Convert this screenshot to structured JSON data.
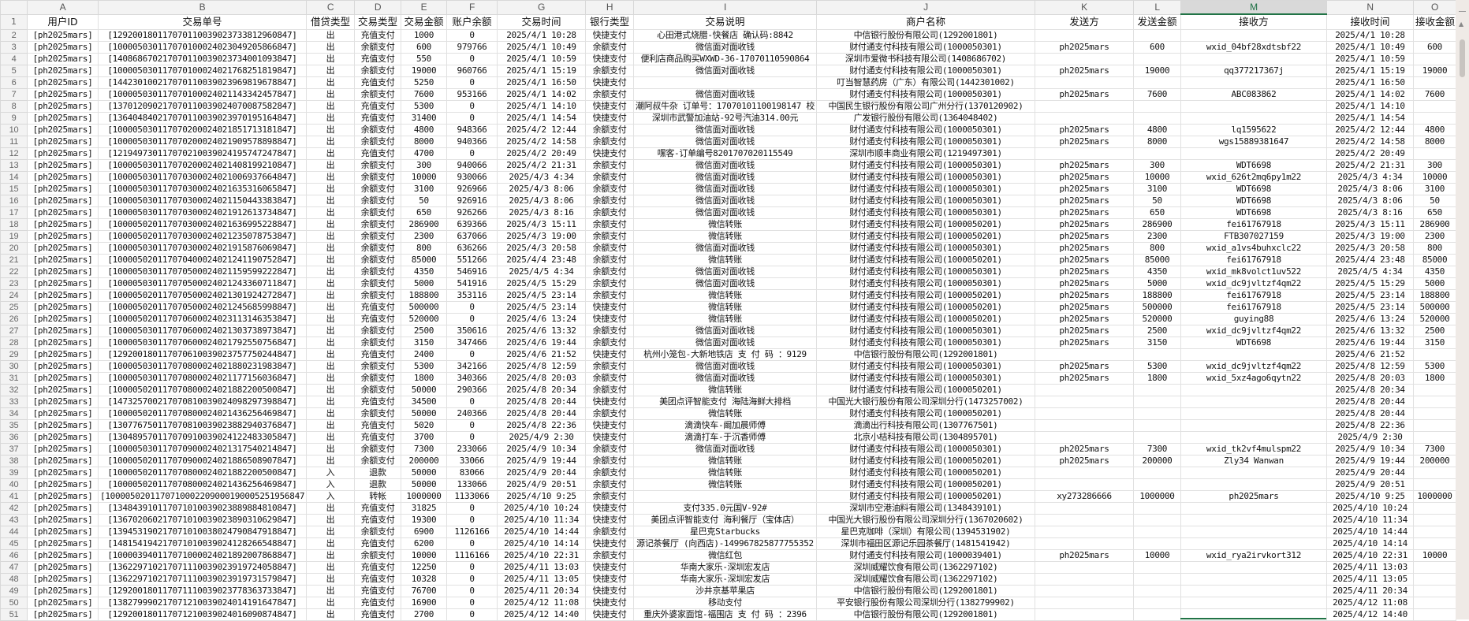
{
  "sheet": {
    "selected_column": "M",
    "columns": [
      "A",
      "B",
      "C",
      "D",
      "E",
      "F",
      "G",
      "H",
      "I",
      "J",
      "K",
      "L",
      "M",
      "N",
      "O"
    ],
    "headers": [
      "用户ID",
      "交易单号",
      "借贷类型",
      "交易类型",
      "交易金额",
      "账户余额",
      "交易时间",
      "银行类型",
      "交易说明",
      "商户名称",
      "发送方",
      "发送金额",
      "接收方",
      "接收时间",
      "接收金额"
    ],
    "row_numbers": [
      "1",
      "2",
      "3",
      "4",
      "5",
      "6",
      "7",
      "8",
      "9",
      "10",
      "11",
      "12",
      "13",
      "14",
      "15",
      "16",
      "17",
      "18",
      "19",
      "20",
      "21",
      "22",
      "23",
      "24",
      "25",
      "26",
      "27",
      "28",
      "29",
      "30",
      "31",
      "32",
      "33",
      "34",
      "35",
      "36",
      "37",
      "38",
      "39",
      "40",
      "41",
      "42",
      "43",
      "44",
      "45",
      "46",
      "47",
      "48",
      "49",
      "50",
      "51"
    ],
    "rows": [
      [
        "[ph2025mars]",
        "[129200180117070110039023733812960847]",
        "出",
        "充值支付",
        "1000",
        "0",
        "2025/4/1 10:28",
        "快捷支付",
        "心田港式烧腊-快餐店 确认码:8842",
        "中信银行股份有限公司(1292001801)",
        "",
        "",
        "",
        "2025/4/1 10:28",
        ""
      ],
      [
        "[ph2025mars]",
        "[100005030117070100024023049205866847]",
        "出",
        "余额支付",
        "600",
        "979766",
        "2025/4/1 10:49",
        "余额支付",
        "微信面对面收钱",
        "财付通支付科技有限公司(1000050301)",
        "ph2025mars",
        "600",
        "wxid_04bf28xdtsbf22",
        "2025/4/1 10:49",
        "600"
      ],
      [
        "[ph2025mars]",
        "[140868670217070110039023734001093847]",
        "出",
        "充值支付",
        "550",
        "0",
        "2025/4/1 10:59",
        "快捷支付",
        "便利店商品购买WXWD-36-17070110590864",
        "深圳市爱微书科技有限公司(1408686702)",
        "",
        "",
        "",
        "2025/4/1 10:59",
        ""
      ],
      [
        "[ph2025mars]",
        "[100005030117070100024021768251819847]",
        "出",
        "余额支付",
        "19000",
        "960766",
        "2025/4/1 15:19",
        "余额支付",
        "微信面对面收钱",
        "财付通支付科技有限公司(1000050301)",
        "ph2025mars",
        "19000",
        "qq377217367j",
        "2025/4/1 15:19",
        "19000"
      ],
      [
        "[ph2025mars]",
        "[144230100217070110039023969819678847]",
        "出",
        "充值支付",
        "5250",
        "0",
        "2025/4/1 16:50",
        "快捷支付",
        "",
        "叮当智慧药房（广东）有限公司(1442301002)",
        "",
        "",
        "",
        "2025/4/1 16:50",
        ""
      ],
      [
        "[ph2025mars]",
        "[100005030117070100024021143342457847]",
        "出",
        "余额支付",
        "7600",
        "953166",
        "2025/4/1 14:02",
        "余额支付",
        "微信面对面收钱",
        "财付通支付科技有限公司(1000050301)",
        "ph2025mars",
        "7600",
        "ABC083862",
        "2025/4/1 14:02",
        "7600"
      ],
      [
        "[ph2025mars]",
        "[137012090217070110039024070087582847]",
        "出",
        "充值支付",
        "5300",
        "0",
        "2025/4/1 14:10",
        "快捷支付",
        "潮阿叔牛杂 订单号：17070101100198147 校",
        "中国民生银行股份有限公司广州分行(1370120902)",
        "",
        "",
        "",
        "2025/4/1 14:10",
        ""
      ],
      [
        "[ph2025mars]",
        "[136404840217070110039023970195164847]",
        "出",
        "充值支付",
        "31400",
        "0",
        "2025/4/1 14:54",
        "快捷支付",
        "深圳市武警加油站-92号汽油314.00元",
        "广发银行股份有限公司(1364048402)",
        "",
        "",
        "",
        "2025/4/1 14:54",
        ""
      ],
      [
        "[ph2025mars]",
        "[100005030117070200024021851713181847]",
        "出",
        "余额支付",
        "4800",
        "948366",
        "2025/4/2 12:44",
        "余额支付",
        "微信面对面收钱",
        "财付通支付科技有限公司(1000050301)",
        "ph2025mars",
        "4800",
        "lq1595622",
        "2025/4/2 12:44",
        "4800"
      ],
      [
        "[ph2025mars]",
        "[100005030117070200024021909578898847]",
        "出",
        "余额支付",
        "8000",
        "940366",
        "2025/4/2 14:58",
        "余额支付",
        "微信面对面收钱",
        "财付通支付科技有限公司(1000050301)",
        "ph2025mars",
        "8000",
        "wgs15889381647",
        "2025/4/2 14:58",
        "8000"
      ],
      [
        "[ph2025mars]",
        "[121949730117070210039024195747247847]",
        "出",
        "充值支付",
        "4700",
        "0",
        "2025/4/2 20:49",
        "快捷支付",
        "嘿客-订单编号8201707020115549",
        "深圳市顺丰商业有限公司(1219497301)",
        "",
        "",
        "",
        "2025/4/2 20:49",
        ""
      ],
      [
        "[ph2025mars]",
        "[100005030117070200024021408199210847]",
        "出",
        "余额支付",
        "300",
        "940066",
        "2025/4/2 21:31",
        "余额支付",
        "微信面对面收钱",
        "财付通支付科技有限公司(1000050301)",
        "ph2025mars",
        "300",
        "WDT6698",
        "2025/4/2 21:31",
        "300"
      ],
      [
        "[ph2025mars]",
        "[100005030117070300024021006937664847]",
        "出",
        "余额支付",
        "10000",
        "930066",
        "2025/4/3 4:34",
        "余额支付",
        "微信面对面收钱",
        "财付通支付科技有限公司(1000050301)",
        "ph2025mars",
        "10000",
        "wxid_626t2mq6py1m22",
        "2025/4/3 4:34",
        "10000"
      ],
      [
        "[ph2025mars]",
        "[100005030117070300024021635316065847]",
        "出",
        "余额支付",
        "3100",
        "926966",
        "2025/4/3 8:06",
        "余额支付",
        "微信面对面收钱",
        "财付通支付科技有限公司(1000050301)",
        "ph2025mars",
        "3100",
        "WDT6698",
        "2025/4/3 8:06",
        "3100"
      ],
      [
        "[ph2025mars]",
        "[100005030117070300024021150443383847]",
        "出",
        "余额支付",
        "50",
        "926916",
        "2025/4/3 8:06",
        "余额支付",
        "微信面对面收钱",
        "财付通支付科技有限公司(1000050301)",
        "ph2025mars",
        "50",
        "WDT6698",
        "2025/4/3 8:06",
        "50"
      ],
      [
        "[ph2025mars]",
        "[100005030117070300024021912613734847]",
        "出",
        "余额支付",
        "650",
        "926266",
        "2025/4/3 8:16",
        "余额支付",
        "微信面对面收钱",
        "财付通支付科技有限公司(1000050301)",
        "ph2025mars",
        "650",
        "WDT6698",
        "2025/4/3 8:16",
        "650"
      ],
      [
        "[ph2025mars]",
        "[100005020117070300024021636995228847]",
        "出",
        "余额支付",
        "286900",
        "639366",
        "2025/4/3 15:11",
        "余额支付",
        "微信转账",
        "财付通支付科技有限公司(1000050201)",
        "ph2025mars",
        "286900",
        "fei61767918",
        "2025/4/3 15:11",
        "286900"
      ],
      [
        "[ph2025mars]",
        "[100005020117070300024021235078753847]",
        "出",
        "余额支付",
        "2300",
        "637066",
        "2025/4/3 19:00",
        "余额支付",
        "微信转账",
        "财付通支付科技有限公司(1000050201)",
        "ph2025mars",
        "2300",
        "FTB307027159",
        "2025/4/3 19:00",
        "2300"
      ],
      [
        "[ph2025mars]",
        "[100005030117070300024021915876069847]",
        "出",
        "余额支付",
        "800",
        "636266",
        "2025/4/3 20:58",
        "余额支付",
        "微信面对面收钱",
        "财付通支付科技有限公司(1000050301)",
        "ph2025mars",
        "800",
        "wxid_a1vs4buhxclc22",
        "2025/4/3 20:58",
        "800"
      ],
      [
        "[ph2025mars]",
        "[100005020117070400024021241190752847]",
        "出",
        "余额支付",
        "85000",
        "551266",
        "2025/4/4 23:48",
        "余额支付",
        "微信转账",
        "财付通支付科技有限公司(1000050201)",
        "ph2025mars",
        "85000",
        "fei61767918",
        "2025/4/4 23:48",
        "85000"
      ],
      [
        "[ph2025mars]",
        "[100005030117070500024021159599222847]",
        "出",
        "余额支付",
        "4350",
        "546916",
        "2025/4/5 4:34",
        "余额支付",
        "微信面对面收钱",
        "财付通支付科技有限公司(1000050301)",
        "ph2025mars",
        "4350",
        "wxid_mk8volct1uv522",
        "2025/4/5 4:34",
        "4350"
      ],
      [
        "[ph2025mars]",
        "[100005030117070500024021243360711847]",
        "出",
        "余额支付",
        "5000",
        "541916",
        "2025/4/5 15:29",
        "余额支付",
        "微信面对面收钱",
        "财付通支付科技有限公司(1000050301)",
        "ph2025mars",
        "5000",
        "wxid_dc9jvltzf4qm22",
        "2025/4/5 15:29",
        "5000"
      ],
      [
        "[ph2025mars]",
        "[100005020117070500024021301924272847]",
        "出",
        "余额支付",
        "188800",
        "353116",
        "2025/4/5 23:14",
        "余额支付",
        "微信转账",
        "财付通支付科技有限公司(1000050201)",
        "ph2025mars",
        "188800",
        "fei61767918",
        "2025/4/5 23:14",
        "188800"
      ],
      [
        "[ph2025mars]",
        "[100005020117070500024021245685998847]",
        "出",
        "充值支付",
        "500000",
        "0",
        "2025/4/5 23:14",
        "快捷支付",
        "微信转账",
        "财付通支付科技有限公司(1000050201)",
        "ph2025mars",
        "500000",
        "fei61767918",
        "2025/4/5 23:14",
        "500000"
      ],
      [
        "[ph2025mars]",
        "[100005020117070600024023113146353847]",
        "出",
        "充值支付",
        "520000",
        "0",
        "2025/4/6 13:24",
        "快捷支付",
        "微信转账",
        "财付通支付科技有限公司(1000050201)",
        "ph2025mars",
        "520000",
        "guying88",
        "2025/4/6 13:24",
        "520000"
      ],
      [
        "[ph2025mars]",
        "[100005030117070600024021303738973847]",
        "出",
        "余额支付",
        "2500",
        "350616",
        "2025/4/6 13:32",
        "余额支付",
        "微信面对面收钱",
        "财付通支付科技有限公司(1000050301)",
        "ph2025mars",
        "2500",
        "wxid_dc9jvltzf4qm22",
        "2025/4/6 13:32",
        "2500"
      ],
      [
        "[ph2025mars]",
        "[100005030117070600024021792550756847]",
        "出",
        "余额支付",
        "3150",
        "347466",
        "2025/4/6 19:44",
        "余额支付",
        "微信面对面收钱",
        "财付通支付科技有限公司(1000050301)",
        "ph2025mars",
        "3150",
        "WDT6698",
        "2025/4/6 19:44",
        "3150"
      ],
      [
        "[ph2025mars]",
        "[129200180117070610039023757750244847]",
        "出",
        "充值支付",
        "2400",
        "0",
        "2025/4/6 21:52",
        "快捷支付",
        "杭州小笼包-大新地铁店 支 付 码 ：9129",
        "中信银行股份有限公司(1292001801)",
        "",
        "",
        "",
        "2025/4/6 21:52",
        ""
      ],
      [
        "[ph2025mars]",
        "[100005030117070800024021880231983847]",
        "出",
        "余额支付",
        "5300",
        "342166",
        "2025/4/8 12:59",
        "余额支付",
        "微信面对面收钱",
        "财付通支付科技有限公司(1000050301)",
        "ph2025mars",
        "5300",
        "wxid_dc9jvltzf4qm22",
        "2025/4/8 12:59",
        "5300"
      ],
      [
        "[ph2025mars]",
        "[100005030117070800024021177156036847]",
        "出",
        "余额支付",
        "1800",
        "340366",
        "2025/4/8 20:03",
        "余额支付",
        "微信面对面收钱",
        "财付通支付科技有限公司(1000050301)",
        "ph2025mars",
        "1800",
        "wxid_5xz4ago6qytn22",
        "2025/4/8 20:03",
        "1800"
      ],
      [
        "[ph2025mars]",
        "[100005020117070800024021882200500847]",
        "出",
        "余额支付",
        "50000",
        "290366",
        "2025/4/8 20:34",
        "余额支付",
        "微信转账",
        "财付通支付科技有限公司(1000050201)",
        "",
        "",
        "",
        "2025/4/8 20:34",
        ""
      ],
      [
        "[ph2025mars]",
        "[147325700217070810039024098297398847]",
        "出",
        "充值支付",
        "34500",
        "0",
        "2025/4/8 20:44",
        "快捷支付",
        "美团点评智能支付 海陆海鲜大排档",
        "中国光大银行股份有限公司深圳分行(1473257002)",
        "",
        "",
        "",
        "2025/4/8 20:44",
        ""
      ],
      [
        "[ph2025mars]",
        "[100005020117070800024021436256469847]",
        "出",
        "余额支付",
        "50000",
        "240366",
        "2025/4/8 20:44",
        "余额支付",
        "微信转账",
        "财付通支付科技有限公司(1000050201)",
        "",
        "",
        "",
        "2025/4/8 20:44",
        ""
      ],
      [
        "[ph2025mars]",
        "[130776750117070810039023882940376847]",
        "出",
        "充值支付",
        "5020",
        "0",
        "2025/4/8 22:36",
        "快捷支付",
        "滴滴快车-阚加晨师傅",
        "滴滴出行科技有限公司(1307767501)",
        "",
        "",
        "",
        "2025/4/8 22:36",
        ""
      ],
      [
        "[ph2025mars]",
        "[130489570117070910039024122483305847]",
        "出",
        "充值支付",
        "3700",
        "0",
        "2025/4/9 2:30",
        "快捷支付",
        "滴滴打车-于沉香师傅",
        "北京小桔科技有限公司(1304895701)",
        "",
        "",
        "",
        "2025/4/9 2:30",
        ""
      ],
      [
        "[ph2025mars]",
        "[100005030117070900024021317540214847]",
        "出",
        "余额支付",
        "7300",
        "233066",
        "2025/4/9 10:34",
        "余额支付",
        "微信面对面收钱",
        "财付通支付科技有限公司(1000050301)",
        "ph2025mars",
        "7300",
        "wxid_tk2vf4mulspm22",
        "2025/4/9 10:34",
        "7300"
      ],
      [
        "[ph2025mars]",
        "[100005020117070900024021886508907847]",
        "出",
        "余额支付",
        "200000",
        "33066",
        "2025/4/9 19:44",
        "余额支付",
        "微信转账",
        "财付通支付科技有限公司(1000050201)",
        "ph2025mars",
        "200000",
        "Zly34 Wanwan",
        "2025/4/9 19:44",
        "200000"
      ],
      [
        "[ph2025mars]",
        "[100005020117070800024021882200500847]",
        "入",
        "退款",
        "50000",
        "83066",
        "2025/4/9 20:44",
        "余额支付",
        "微信转账",
        "财付通支付科技有限公司(1000050201)",
        "",
        "",
        "",
        "2025/4/9 20:44",
        ""
      ],
      [
        "[ph2025mars]",
        "[100005020117070800024021436256469847]",
        "入",
        "退款",
        "50000",
        "133066",
        "2025/4/9 20:51",
        "余额支付",
        "微信转账",
        "财付通支付科技有限公司(1000050201)",
        "",
        "",
        "",
        "2025/4/9 20:51",
        ""
      ],
      [
        "[ph2025mars]",
        "[1000050201170710002209000190005251956847]",
        "入",
        "转帐",
        "1000000",
        "1133066",
        "2025/4/10 9:25",
        "余额支付",
        "",
        "财付通支付科技有限公司(1000050201)",
        "xy273286666",
        "1000000",
        "ph2025mars",
        "2025/4/10 9:25",
        "1000000"
      ],
      [
        "[ph2025mars]",
        "[134843910117071010039023889884810847]",
        "出",
        "充值支付",
        "31825",
        "0",
        "2025/4/10 10:24",
        "快捷支付",
        "支付335.0元国V-92#",
        "深圳市空港油料有限公司(1348439101)",
        "",
        "",
        "",
        "2025/4/10 10:24",
        ""
      ],
      [
        "[ph2025mars]",
        "[136702060217071010039023890310629847]",
        "出",
        "充值支付",
        "19300",
        "0",
        "2025/4/10 11:34",
        "快捷支付",
        "美团点评智能支付 海利餐厅（宝体店）",
        "中国光大银行股份有限公司深圳分行(1367020602)",
        "",
        "",
        "",
        "2025/4/10 11:34",
        ""
      ],
      [
        "[ph2025mars]",
        "[139453190217071010038024790847918847]",
        "出",
        "余额支付",
        "6900",
        "1126166",
        "2025/4/10 14:44",
        "余额支付",
        "星巴克Starbucks",
        "星巴克咖啡（深圳）有限公司(1394531902)",
        "",
        "",
        "",
        "2025/4/10 14:44",
        ""
      ],
      [
        "[ph2025mars]",
        "[148154194217071010039024128266548847]",
        "出",
        "充值支付",
        "6200",
        "0",
        "2025/4/10 14:14",
        "快捷支付",
        "源记茶餐厅 (向西店)-149967825877755352",
        "深圳市福田区源记乐园茶餐厅(1481541942)",
        "",
        "",
        "",
        "2025/4/10 14:14",
        ""
      ],
      [
        "[ph2025mars]",
        "[100003940117071000024021892007868847]",
        "出",
        "余额支付",
        "10000",
        "1116166",
        "2025/4/10 22:31",
        "余额支付",
        "微信红包",
        "财付通支付科技有限公司(1000039401)",
        "ph2025mars",
        "10000",
        "wxid_rya2irvkort312",
        "2025/4/10 22:31",
        "10000"
      ],
      [
        "[ph2025mars]",
        "[136229710217071110039023919724058847]",
        "出",
        "充值支付",
        "12250",
        "0",
        "2025/4/11 13:03",
        "快捷支付",
        "华南大家乐-深圳宏发店",
        "深圳威耀饮食有限公司(1362297102)",
        "",
        "",
        "",
        "2025/4/11 13:03",
        ""
      ],
      [
        "[ph2025mars]",
        "[136229710217071110039023919731579847]",
        "出",
        "充值支付",
        "10328",
        "0",
        "2025/4/11 13:05",
        "快捷支付",
        "华南大家乐-深圳宏发店",
        "深圳威耀饮食有限公司(1362297102)",
        "",
        "",
        "",
        "2025/4/11 13:05",
        ""
      ],
      [
        "[ph2025mars]",
        "[129200180117071110039023778363733847]",
        "出",
        "充值支付",
        "76700",
        "0",
        "2025/4/11 20:34",
        "快捷支付",
        "沙井京基苹果店",
        "中信银行股份有限公司(1292001801)",
        "",
        "",
        "",
        "2025/4/11 20:34",
        ""
      ],
      [
        "[ph2025mars]",
        "[138279990217071210039024014191647847]",
        "出",
        "充值支付",
        "16900",
        "0",
        "2025/4/12 11:08",
        "快捷支付",
        "移动支付",
        "平安银行股份有限公司深圳分行(1382799902)",
        "",
        "",
        "",
        "2025/4/12 11:08",
        ""
      ],
      [
        "[ph2025mars]",
        "[129200180117071210039024016090874847]",
        "出",
        "充值支付",
        "2700",
        "0",
        "2025/4/12 14:40",
        "快捷支付",
        "重庆外婆家面馆-福围店 支 付 码 ：2396",
        "中信银行股份有限公司(1292001801)",
        "",
        "",
        "",
        "2025/4/12 14:40",
        ""
      ]
    ]
  }
}
